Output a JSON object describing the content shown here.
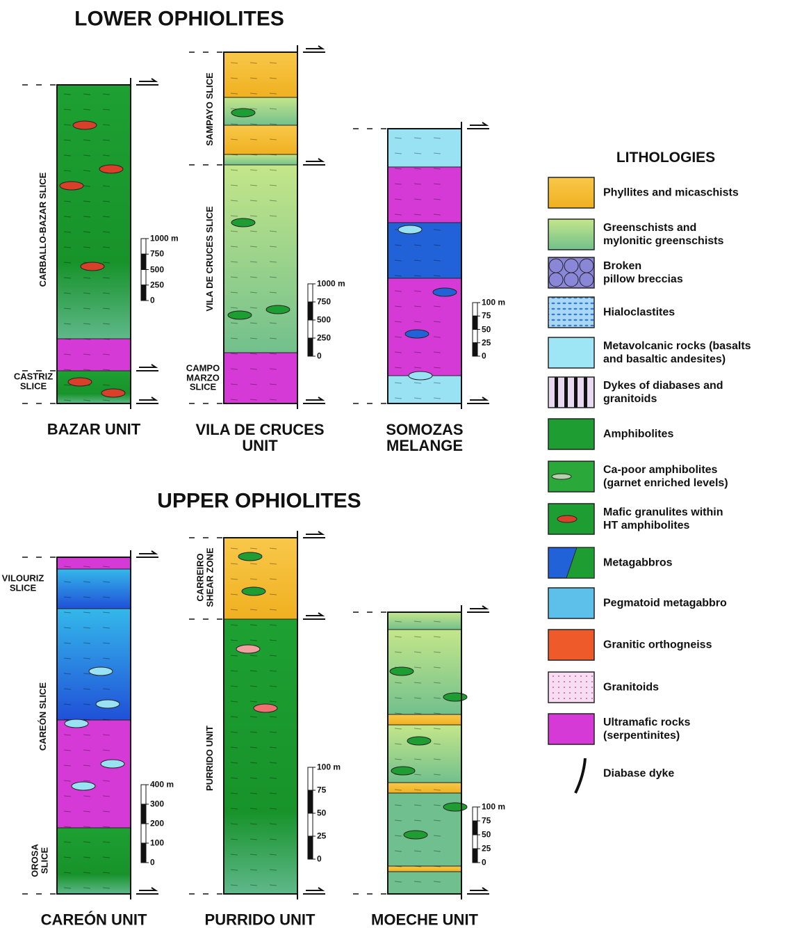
{
  "sections": [
    {
      "title": "LOWER OPHIOLITES",
      "columns": [
        {
          "name": "BAZAR UNIT",
          "slices": [
            "CARBALLO-BAZAR SLICE",
            "CASTRIZ\nSLICE"
          ],
          "scale": [
            "1000 m",
            "750",
            "500",
            "250",
            "0"
          ]
        },
        {
          "name": "VILA DE CRUCES\nUNIT",
          "slices": [
            "SAMPAYO SLICE",
            "VILA DE CRUCES SLICE",
            "CAMPO\nMARZO\nSLICE"
          ],
          "scale": [
            "1000 m",
            "750",
            "500",
            "250",
            "0"
          ]
        },
        {
          "name": "SOMOZAS\nMELANGE",
          "scale": [
            "100 m",
            "75",
            "50",
            "25",
            "0"
          ]
        }
      ]
    },
    {
      "title": "UPPER OPHIOLITES",
      "columns": [
        {
          "name": "CAREÓN UNIT",
          "slices": [
            "VILOURIZ\nSLICE",
            "CAREÓN SLICE",
            "OROSA\nSLICE"
          ],
          "scale": [
            "400 m",
            "300",
            "200",
            "100",
            "0"
          ]
        },
        {
          "name": "PURRIDO UNIT",
          "slices": [
            "CARREIRO\nSHEAR ZONE",
            "PURRIDO UNIT"
          ],
          "scale": [
            "100 m",
            "75",
            "50",
            "25",
            "0"
          ]
        },
        {
          "name": "MOECHE UNIT",
          "scale": [
            "100 m",
            "75",
            "50",
            "25",
            "0"
          ]
        }
      ]
    }
  ],
  "legend": {
    "title": "LITHOLOGIES",
    "items": [
      "Phyllites and micaschists",
      "Greenschists and\nmylonitic greenschists",
      "Broken\npillow breccias",
      "Hialoclastites",
      "Metavolcanic rocks (basalts\nand basaltic andesites)",
      "Dykes of diabases and\ngranitoids",
      "Amphibolites",
      "Ca-poor amphibolites\n(garnet enriched levels)",
      "Mafic granulites within\nHT amphibolites",
      "Metagabbros",
      "Pegmatoid metagabbro",
      "Granitic orthogneiss",
      "Granitoids",
      "Ultramafic rocks\n(serpentinites)",
      "Diabase dyke"
    ]
  }
}
